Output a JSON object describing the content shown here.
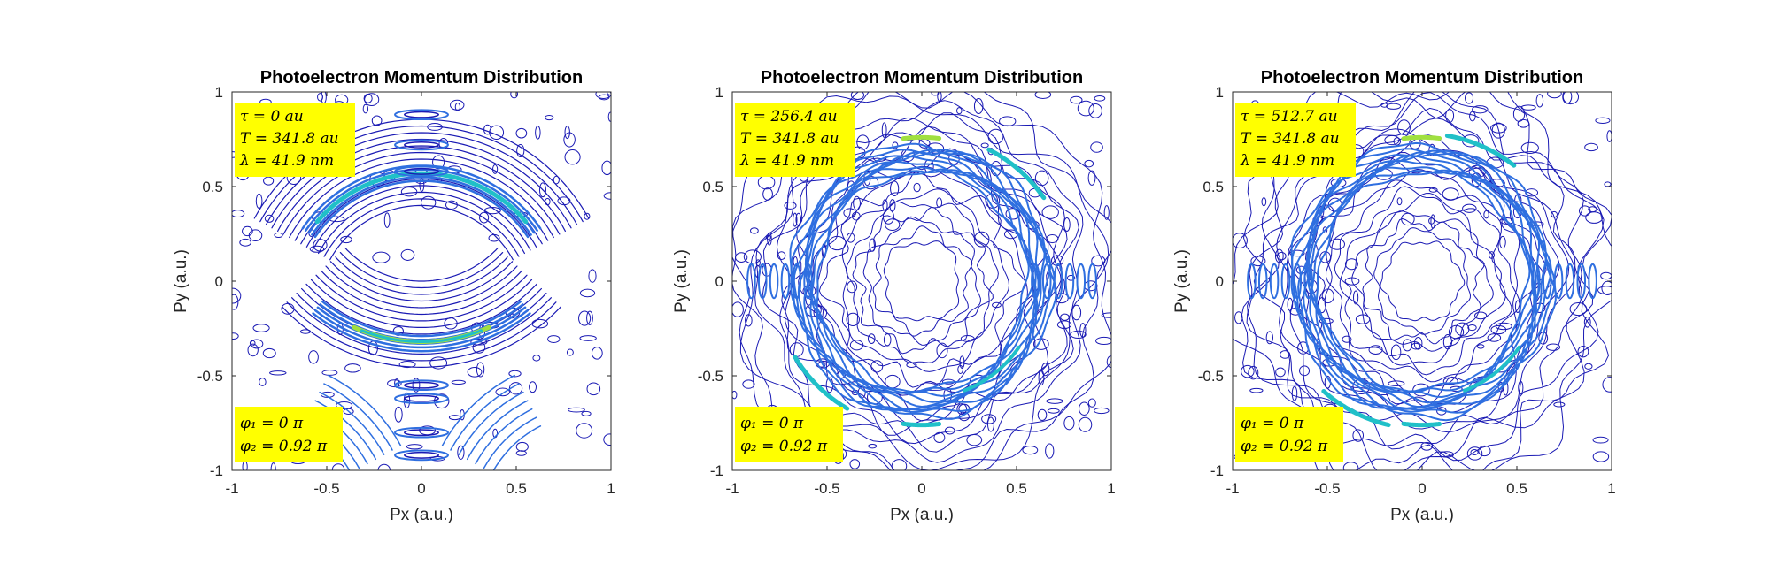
{
  "colors": {
    "background": "#ffffff",
    "axes": "#262626",
    "annotation_box": "#ffff00",
    "contour_low": "#1a1ab4",
    "contour_mid": "#2f6fe0",
    "contour_high": "#20c0c8",
    "contour_peak": "#a0e040"
  },
  "chart_data": [
    {
      "type": "contour",
      "title": "Photoelectron Momentum Distribution",
      "xlabel": "Px (a.u.)",
      "ylabel": "Py (a.u.)",
      "xlim": [
        -1,
        1
      ],
      "ylim": [
        -1,
        1
      ],
      "xticks": [
        "-1",
        "-0.5",
        "0",
        "0.5",
        "1"
      ],
      "yticks": [
        "-1",
        "-0.5",
        "0",
        "0.5",
        "1"
      ],
      "annotation_top": [
        "τ = 0 au",
        "T = 341.8 au",
        "λ = 41.9 nm"
      ],
      "annotation_bottom": [
        "φ₁ = 0 π",
        "φ₂ = 0.92 π"
      ],
      "pattern": "two-lobe",
      "tau": 0
    },
    {
      "type": "contour",
      "title": "Photoelectron Momentum Distribution",
      "xlabel": "Px (a.u.)",
      "ylabel": "Py (a.u.)",
      "xlim": [
        -1,
        1
      ],
      "ylim": [
        -1,
        1
      ],
      "xticks": [
        "-1",
        "-0.5",
        "0",
        "0.5",
        "1"
      ],
      "yticks": [
        "-1",
        "-0.5",
        "0",
        "0.5",
        "1"
      ],
      "annotation_top": [
        "τ = 256.4 au",
        "T = 341.8 au",
        "λ = 41.9 nm"
      ],
      "annotation_bottom": [
        "φ₁ = 0 π",
        "φ₂ = 0.92 π"
      ],
      "pattern": "ring",
      "tau": 256.4
    },
    {
      "type": "contour",
      "title": "Photoelectron Momentum Distribution",
      "xlabel": "Px (a.u.)",
      "ylabel": "Py (a.u.)",
      "xlim": [
        -1,
        1
      ],
      "ylim": [
        -1,
        1
      ],
      "xticks": [
        "-1",
        "-0.5",
        "0",
        "0.5",
        "1"
      ],
      "yticks": [
        "-1",
        "-0.5",
        "0",
        "0.5",
        "1"
      ],
      "annotation_top": [
        "τ = 512.7 au",
        "T = 341.8 au",
        "λ = 41.9 nm"
      ],
      "annotation_bottom": [
        "φ₁ = 0 π",
        "φ₂ = 0.92 π"
      ],
      "pattern": "ring",
      "tau": 512.7
    }
  ]
}
